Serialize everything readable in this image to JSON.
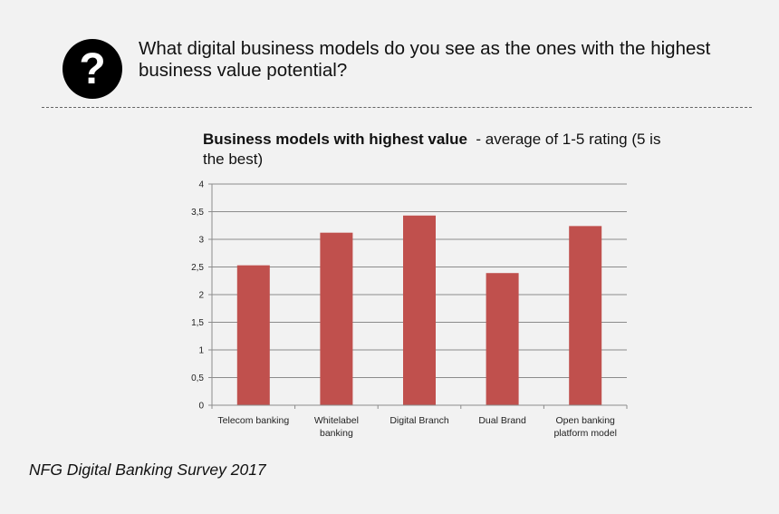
{
  "question": {
    "icon": "question-circle-icon",
    "text": "What digital business models do you see as the ones with the highest business value potential?"
  },
  "chart_data": {
    "type": "bar",
    "title": "Business models with highest value",
    "subtitle": "- average of 1-5 rating (5 is the best)",
    "categories": [
      "Telecom banking",
      "Whitelabel banking",
      "Digital Branch",
      "Dual Brand",
      "Open banking platform model"
    ],
    "category_lines": [
      [
        "Telecom banking"
      ],
      [
        "Whitelabel",
        "banking"
      ],
      [
        "Digital Branch"
      ],
      [
        "Dual Brand"
      ],
      [
        "Open banking",
        "platform model"
      ]
    ],
    "values": [
      2.53,
      3.12,
      3.43,
      2.39,
      3.24
    ],
    "ylim": [
      0,
      4
    ],
    "yticks": [
      0,
      0.5,
      1,
      1.5,
      2,
      2.5,
      3,
      3.5,
      4
    ],
    "ytick_labels": [
      "0",
      "0,5",
      "1",
      "1,5",
      "2",
      "2,5",
      "3",
      "3,5",
      "4"
    ],
    "xlabel": "",
    "ylabel": "",
    "grid": true,
    "bar_color": "#c0504d"
  },
  "caption": "NFG Digital Banking Survey 2017"
}
